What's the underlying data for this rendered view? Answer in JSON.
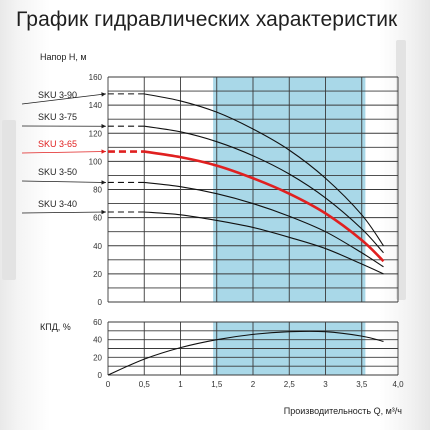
{
  "page": {
    "title": "График гидравлических характеристик"
  },
  "chart_data": [
    {
      "type": "line",
      "ylabel": "Напор H, м",
      "xlim": [
        0,
        4.0
      ],
      "ylim": [
        0,
        160
      ],
      "x_ticks": [
        "0",
        "0,5",
        "1",
        "1,5",
        "2",
        "2,5",
        "3",
        "3,5",
        "4,0"
      ],
      "y_ticks": [
        "0",
        "20",
        "40",
        "60",
        "80",
        "100",
        "120",
        "140",
        "160"
      ],
      "grid": true,
      "highlight_band": [
        1.45,
        3.55
      ],
      "highlight_color": "#a9d8e8",
      "series": [
        {
          "name": "SKU 3-90",
          "color": "#111111",
          "dashed_until": 0.5,
          "x": [
            0,
            0.5,
            1.0,
            1.5,
            2.0,
            2.5,
            3.0,
            3.5,
            3.8
          ],
          "y": [
            148,
            148,
            143,
            135,
            123,
            108,
            88,
            62,
            40
          ]
        },
        {
          "name": "SKU 3-75",
          "color": "#111111",
          "dashed_until": 0.5,
          "x": [
            0,
            0.5,
            1.0,
            1.5,
            2.0,
            2.5,
            3.0,
            3.5,
            3.8
          ],
          "y": [
            125,
            125,
            121,
            114,
            104,
            91,
            74,
            52,
            35
          ]
        },
        {
          "name": "SKU 3-65",
          "color": "#e02020",
          "dashed_until": 0.5,
          "x": [
            0,
            0.5,
            1.0,
            1.5,
            2.0,
            2.5,
            3.0,
            3.5,
            3.8
          ],
          "y": [
            107,
            107,
            103,
            97,
            88,
            77,
            63,
            44,
            29
          ]
        },
        {
          "name": "SKU 3-50",
          "color": "#111111",
          "dashed_until": 0.5,
          "x": [
            0,
            0.5,
            1.0,
            1.5,
            2.0,
            2.5,
            3.0,
            3.5,
            3.8
          ],
          "y": [
            85,
            85,
            82,
            77,
            70,
            61,
            50,
            35,
            25
          ]
        },
        {
          "name": "SKU 3-40",
          "color": "#111111",
          "dashed_until": 0.5,
          "x": [
            0,
            0.5,
            1.0,
            1.5,
            2.0,
            2.5,
            3.0,
            3.5,
            3.8
          ],
          "y": [
            64,
            64,
            62,
            58,
            53,
            46,
            38,
            27,
            20
          ]
        }
      ]
    },
    {
      "type": "line",
      "ylabel": "КПД, %",
      "xlabel": "Производительность Q, м³/ч",
      "xlim": [
        0,
        4.0
      ],
      "ylim": [
        0,
        60
      ],
      "x_ticks": [
        "0",
        "0,5",
        "1",
        "1,5",
        "2",
        "2,5",
        "3",
        "3,5",
        "4,0"
      ],
      "y_ticks": [
        "0",
        "20",
        "40",
        "60"
      ],
      "grid": true,
      "highlight_band": [
        1.45,
        3.55
      ],
      "series": [
        {
          "color": "#111111",
          "x": [
            0,
            0.5,
            1.0,
            1.5,
            2.0,
            2.5,
            3.0,
            3.5,
            3.8
          ],
          "y": [
            0,
            18,
            31,
            40,
            46,
            49,
            49,
            44,
            38
          ]
        }
      ]
    }
  ]
}
